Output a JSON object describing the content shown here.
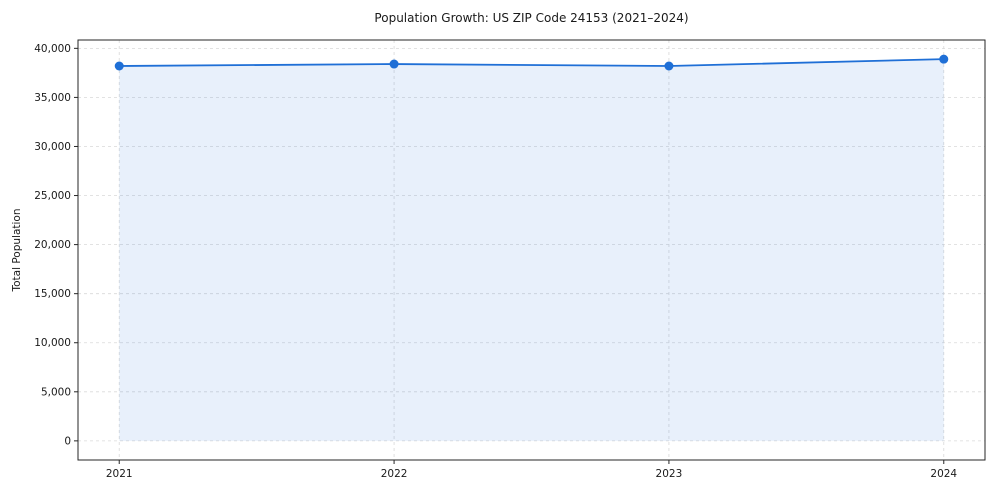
{
  "chart_data": {
    "type": "line",
    "title": "Population Growth: US ZIP Code 24153 (2021–2024)",
    "xlabel": "",
    "ylabel": "Total Population",
    "x": [
      2021,
      2022,
      2023,
      2024
    ],
    "x_tick_labels": [
      "2021",
      "2022",
      "2023",
      "2024"
    ],
    "series": [
      {
        "name": "Total Population",
        "values": [
          38200,
          38400,
          38200,
          38900
        ]
      }
    ],
    "xlim": [
      2020.85,
      2024.15
    ],
    "ylim": [
      -1950,
      40850
    ],
    "yticks": [
      0,
      5000,
      10000,
      15000,
      20000,
      25000,
      30000,
      35000,
      40000
    ],
    "grid": true,
    "grid_style": "dashed",
    "legend": "none",
    "marker": "circle",
    "area": true,
    "colors": {
      "line": "#1f6fd6",
      "marker": "#1f6fd6",
      "area_fill": "#1f6fd6",
      "area_fill_opacity": 0.1,
      "grid": "#d9d9d9",
      "axis": "#262626",
      "text": "#1a1a1a",
      "background": "#ffffff"
    }
  }
}
